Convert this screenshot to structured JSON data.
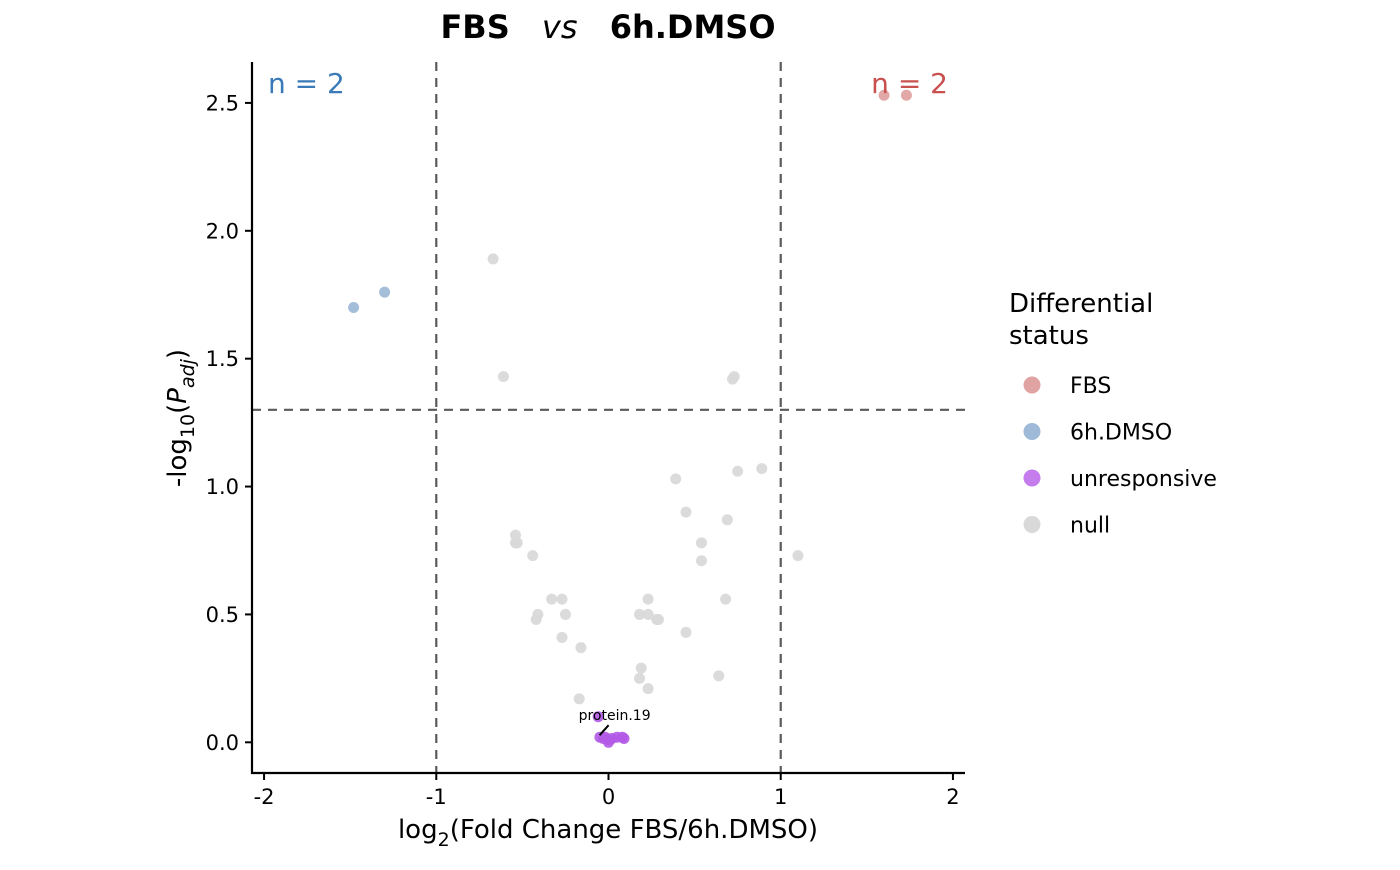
{
  "chart_data": {
    "type": "scatter",
    "title": {
      "left": "FBS",
      "mid": "vs",
      "right": "6h.DMSO"
    },
    "xlabel": {
      "prefix": "log",
      "sub": "2",
      "rest": "(Fold Change FBS/6h.DMSO)"
    },
    "ylabel": {
      "prefix": "-log",
      "sub": "10",
      "open": "(",
      "p": "P",
      "psub": "adj",
      "close": ")"
    },
    "xlim": [
      -2.07,
      2.07
    ],
    "ylim": [
      -0.12,
      2.66
    ],
    "x_ticks": [
      -2,
      -1,
      0,
      1,
      2
    ],
    "x_tick_labels": [
      "-2",
      "-1",
      "0",
      "1",
      "2"
    ],
    "y_ticks": [
      0,
      0.5,
      1,
      1.5,
      2,
      2.5
    ],
    "y_tick_labels": [
      "0.0",
      "0.5",
      "1.0",
      "1.5",
      "2.0",
      "2.5"
    ],
    "grid": false,
    "vlines": [
      -1,
      1
    ],
    "hline": 1.3,
    "count_labels": [
      {
        "text": "n = 2",
        "side": "left",
        "color": "#3a7ab8"
      },
      {
        "text": "n = 2",
        "side": "right",
        "color": "#c8504f"
      }
    ],
    "legend": {
      "title": [
        "Differential",
        "status"
      ],
      "placement": "right",
      "items": [
        {
          "label": "FBS",
          "color": "#e0a3a2"
        },
        {
          "label": "6h.DMSO",
          "color": "#9fbad8"
        },
        {
          "label": "unresponsive",
          "color": "#c57ced"
        },
        {
          "label": "null",
          "color": "#d9d9d9"
        }
      ]
    },
    "annotation": {
      "text": "protein.19",
      "x": -0.04,
      "y": 0.02
    },
    "series": [
      {
        "name": "FBS",
        "color": "#e0a3a2",
        "points": [
          [
            1.6,
            2.53
          ],
          [
            1.73,
            2.53
          ]
        ]
      },
      {
        "name": "6h.DMSO",
        "color": "#9fbad8",
        "points": [
          [
            -1.48,
            1.7
          ],
          [
            -1.3,
            1.76
          ]
        ]
      },
      {
        "name": "unresponsive",
        "color": "#b25ae6",
        "points": [
          [
            -0.06,
            0.1
          ],
          [
            -0.05,
            0.02
          ],
          [
            -0.02,
            0.02
          ],
          [
            0.0,
            0.01
          ],
          [
            0.02,
            0.015
          ],
          [
            0.05,
            0.02
          ],
          [
            0.08,
            0.02
          ],
          [
            0.09,
            0.015
          ],
          [
            0.0,
            0.0
          ],
          [
            -0.03,
            0.015
          ]
        ]
      },
      {
        "name": "null",
        "color": "#d9d9d9",
        "points": [
          [
            -0.67,
            1.89
          ],
          [
            -0.61,
            1.43
          ],
          [
            0.72,
            1.42
          ],
          [
            0.73,
            1.43
          ],
          [
            0.39,
            1.03
          ],
          [
            0.75,
            1.06
          ],
          [
            0.89,
            1.07
          ],
          [
            0.45,
            0.9
          ],
          [
            0.69,
            0.87
          ],
          [
            -0.54,
            0.81
          ],
          [
            -0.54,
            0.78
          ],
          [
            -0.53,
            0.78
          ],
          [
            -0.44,
            0.73
          ],
          [
            0.54,
            0.78
          ],
          [
            0.54,
            0.71
          ],
          [
            1.1,
            0.73
          ],
          [
            -0.33,
            0.56
          ],
          [
            -0.27,
            0.56
          ],
          [
            0.23,
            0.56
          ],
          [
            0.68,
            0.56
          ],
          [
            -0.41,
            0.5
          ],
          [
            -0.25,
            0.5
          ],
          [
            0.18,
            0.5
          ],
          [
            0.23,
            0.5
          ],
          [
            0.28,
            0.48
          ],
          [
            0.29,
            0.48
          ],
          [
            -0.42,
            0.48
          ],
          [
            -0.27,
            0.41
          ],
          [
            0.45,
            0.43
          ],
          [
            -0.16,
            0.37
          ],
          [
            0.19,
            0.29
          ],
          [
            0.18,
            0.25
          ],
          [
            0.23,
            0.21
          ],
          [
            0.64,
            0.26
          ],
          [
            -0.17,
            0.17
          ]
        ]
      }
    ]
  }
}
